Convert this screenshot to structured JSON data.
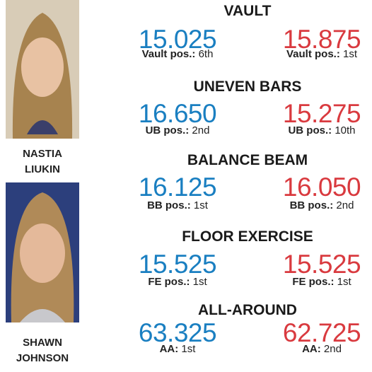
{
  "athletes": [
    {
      "name": [
        "NASTIA",
        "LIUKIN"
      ]
    },
    {
      "name": [
        "SHAWN",
        "JOHNSON"
      ]
    }
  ],
  "events": [
    {
      "title": "VAULT",
      "scores": [
        {
          "score": "15.025",
          "label": "Vault pos.:",
          "pos": "6th"
        },
        {
          "score": "15.875",
          "label": "Vault pos.:",
          "pos": "1st"
        }
      ]
    },
    {
      "title": "UNEVEN BARS",
      "scores": [
        {
          "score": "16.650",
          "label": "UB pos.:",
          "pos": "2nd"
        },
        {
          "score": "15.275",
          "label": "UB pos.:",
          "pos": "10th"
        }
      ]
    },
    {
      "title": "BALANCE BEAM",
      "scores": [
        {
          "score": "16.125",
          "label": "BB pos.:",
          "pos": "1st"
        },
        {
          "score": "16.050",
          "label": "BB pos.:",
          "pos": "2nd"
        }
      ]
    },
    {
      "title": "FLOOR EXERCISE",
      "scores": [
        {
          "score": "15.525",
          "label": "FE pos.:",
          "pos": "1st"
        },
        {
          "score": "15.525",
          "label": "FE pos.:",
          "pos": "1st"
        }
      ]
    },
    {
      "title": "ALL-AROUND",
      "scores": [
        {
          "score": "63.325",
          "label": "AA:",
          "pos": "1st"
        },
        {
          "score": "62.725",
          "label": "AA:",
          "pos": "2nd"
        }
      ]
    }
  ]
}
